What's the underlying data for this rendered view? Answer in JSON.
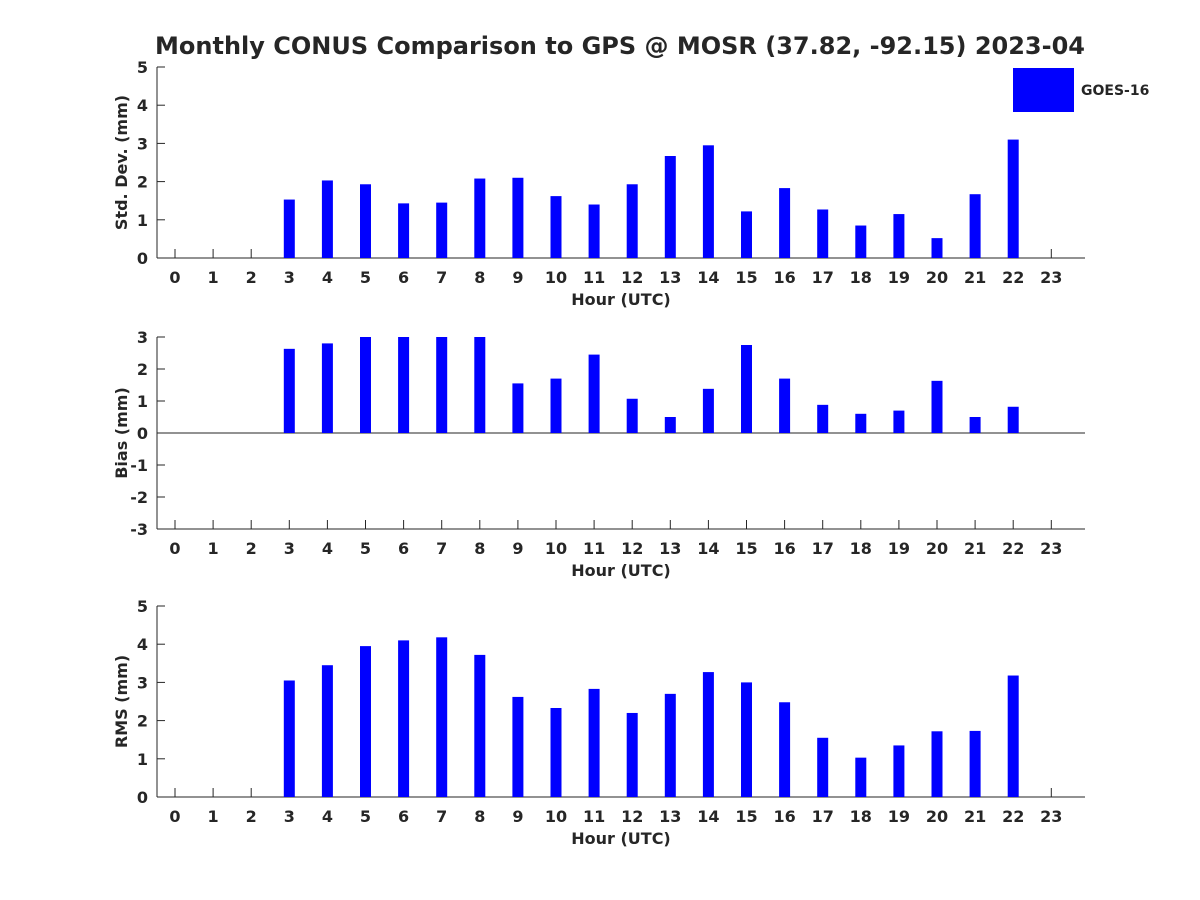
{
  "chart_data": {
    "type": "bar",
    "title": "Monthly CONUS Comparison to GPS @ MOSR (37.82, -92.15) 2023-04",
    "legend": {
      "label": "GOES-16",
      "position": "top-right",
      "color": "#0000ff"
    },
    "bar_color": "#0000ff",
    "categories": [
      "0",
      "1",
      "2",
      "3",
      "4",
      "5",
      "6",
      "7",
      "8",
      "9",
      "10",
      "11",
      "12",
      "13",
      "14",
      "15",
      "16",
      "17",
      "18",
      "19",
      "20",
      "21",
      "22",
      "23"
    ],
    "panels": [
      {
        "id": "std",
        "ylabel": "Std. Dev. (mm)",
        "xlabel": "Hour (UTC)",
        "ylim": [
          0,
          5
        ],
        "yticks": [
          0,
          1,
          2,
          3,
          4,
          5
        ],
        "values": [
          null,
          null,
          null,
          1.53,
          2.03,
          1.93,
          1.43,
          1.45,
          2.08,
          2.1,
          1.62,
          1.4,
          1.93,
          2.67,
          2.95,
          1.22,
          1.83,
          1.27,
          0.85,
          1.15,
          0.52,
          1.67,
          3.1,
          null
        ]
      },
      {
        "id": "bias",
        "ylabel": "Bias (mm)",
        "xlabel": "Hour (UTC)",
        "ylim": [
          -3,
          3
        ],
        "yticks": [
          -3,
          -2,
          -1,
          0,
          1,
          2,
          3
        ],
        "values": [
          null,
          null,
          null,
          2.63,
          2.8,
          3.0,
          3.0,
          3.0,
          3.0,
          1.55,
          1.7,
          2.45,
          1.07,
          0.5,
          1.38,
          2.75,
          1.7,
          0.88,
          0.6,
          0.7,
          1.63,
          0.5,
          0.82,
          null
        ]
      },
      {
        "id": "rms",
        "ylabel": "RMS (mm)",
        "xlabel": "Hour (UTC)",
        "ylim": [
          0,
          5
        ],
        "yticks": [
          0,
          1,
          2,
          3,
          4,
          5
        ],
        "values": [
          null,
          null,
          null,
          3.05,
          3.45,
          3.95,
          4.1,
          4.18,
          3.72,
          2.62,
          2.33,
          2.83,
          2.2,
          2.7,
          3.27,
          3.0,
          2.48,
          1.55,
          1.03,
          1.35,
          1.72,
          1.73,
          3.18,
          null
        ]
      }
    ]
  }
}
